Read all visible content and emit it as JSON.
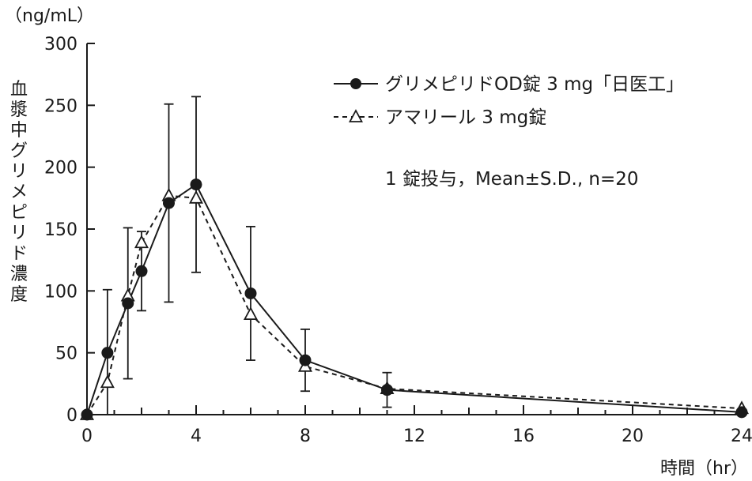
{
  "chart_data": {
    "type": "line",
    "y_unit": "（ng/mL）",
    "ylabel": "血漿中グリメピリド濃度",
    "xlabel": "時間（hr）",
    "xlim": [
      0,
      24
    ],
    "ylim": [
      0,
      300
    ],
    "x_ticks": [
      "0",
      "4",
      "8",
      "12",
      "16",
      "20",
      "24"
    ],
    "y_ticks": [
      "0",
      "50",
      "100",
      "150",
      "200",
      "250",
      "300"
    ],
    "x_tick_values": [
      0,
      4,
      8,
      12,
      16,
      20,
      24
    ],
    "y_tick_values": [
      0,
      50,
      100,
      150,
      200,
      250,
      300
    ],
    "grid": false,
    "legend_position": "top-right",
    "annotation": "1 錠投与，Mean±S.D., n=20",
    "series": [
      {
        "name": "グリメピリドOD錠 3 mg「日医工」",
        "marker": "filled-circle",
        "line_style": "solid",
        "color": "#1a1a1a",
        "x": [
          0,
          0.75,
          1.5,
          2,
          3,
          4,
          6,
          8,
          11,
          24
        ],
        "y": [
          0,
          50,
          90,
          116,
          171,
          186,
          98,
          44,
          20,
          2
        ],
        "sd": [
          0,
          51,
          61,
          32,
          80,
          71,
          54,
          25,
          14,
          0
        ]
      },
      {
        "name": "アマリール 3 mg錠",
        "marker": "open-triangle",
        "line_style": "dashed",
        "color": "#1a1a1a",
        "x": [
          0,
          0.75,
          1.5,
          2,
          3,
          4,
          6,
          8,
          11,
          24
        ],
        "y": [
          0,
          26,
          96,
          139,
          177,
          175,
          81,
          39,
          21,
          5
        ],
        "sd": [
          0,
          0,
          0,
          0,
          0,
          0,
          0,
          0,
          0,
          0
        ]
      }
    ]
  }
}
